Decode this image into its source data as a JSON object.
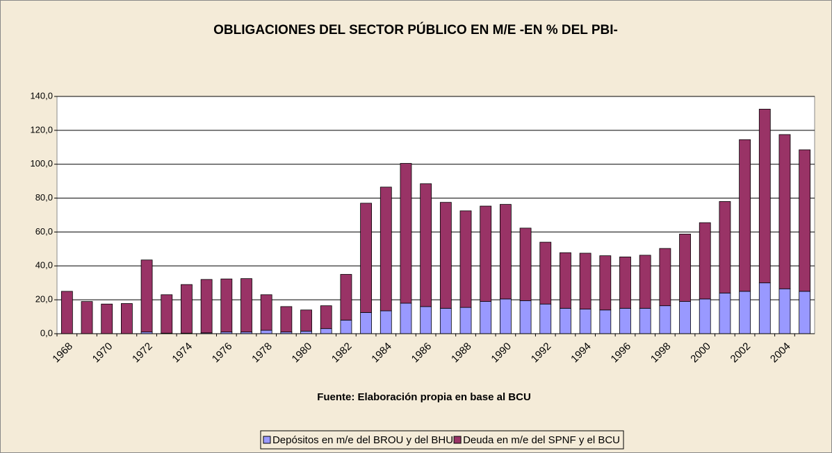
{
  "chart_data": {
    "type": "stacked_bar",
    "title": "OBLIGACIONES DEL SECTOR PÚBLICO EN M/E -EN % DEL PBI-",
    "subtitle": "Fuente: Elaboración propia en base al BCU",
    "categories": [
      "1968",
      null,
      "1970",
      null,
      "1972",
      null,
      "1974",
      null,
      "1976",
      null,
      "1978",
      null,
      "1980",
      null,
      "1982",
      null,
      "1984",
      null,
      "1986",
      null,
      "1988",
      null,
      "1990",
      null,
      "1992",
      null,
      "1994",
      null,
      "1996",
      null,
      "1998",
      null,
      "2000",
      null,
      "2002",
      null,
      "2004",
      null
    ],
    "series": [
      {
        "name": "Depósitos en m/e del BROU y del BHU",
        "color": "#9999ff",
        "values": [
          0,
          0,
          0,
          0,
          1,
          0.3,
          0.3,
          0.5,
          1,
          1,
          2,
          1,
          1.5,
          3,
          8,
          12.5,
          13.5,
          18,
          16,
          15,
          15.5,
          19,
          20.5,
          19.5,
          17.5,
          15,
          14.5,
          14,
          15,
          15,
          16.5,
          19,
          20.5,
          24,
          25,
          30,
          26.5,
          25
        ]
      },
      {
        "name": "Deuda en m/e del SPNF y el BCU",
        "color": "#993366",
        "values": [
          25,
          19,
          17.5,
          17.8,
          42.5,
          22.7,
          28.7,
          31.5,
          31.3,
          31.5,
          21,
          15,
          12.5,
          13.5,
          27,
          64.5,
          73,
          82.5,
          72.5,
          62.5,
          57,
          56.3,
          55.8,
          42.8,
          36.5,
          32.8,
          33,
          32,
          30.3,
          31.3,
          33.8,
          39.8,
          45,
          54,
          89.5,
          102.5,
          91,
          83.5
        ]
      }
    ],
    "ylim": [
      0,
      140
    ],
    "yticks": [
      {
        "value": 0,
        "label": "0,0"
      },
      {
        "value": 20,
        "label": "20,0"
      },
      {
        "value": 40,
        "label": "40,0"
      },
      {
        "value": 60,
        "label": "60,0"
      },
      {
        "value": 80,
        "label": "80,0"
      },
      {
        "value": 100,
        "label": "100,0"
      },
      {
        "value": 120,
        "label": "120,0"
      },
      {
        "value": 140,
        "label": "140,0"
      }
    ],
    "grid": true,
    "legend": "bottom"
  }
}
